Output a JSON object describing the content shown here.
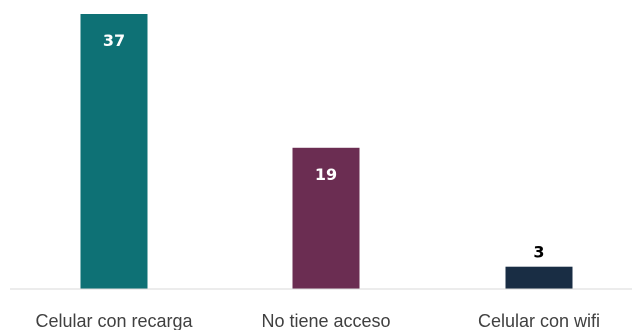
{
  "chart_data": {
    "type": "bar",
    "categories": [
      "Celular con recarga",
      "No tiene acceso",
      "Celular con wifi"
    ],
    "values": [
      37,
      19,
      3
    ],
    "colors": [
      "#0e7175",
      "#6b2d52",
      "#192d44"
    ],
    "value_label_colors": [
      "#ffffff",
      "#ffffff",
      "#000000"
    ],
    "axis_color": "#d9d9d9",
    "title": "",
    "xlabel": "",
    "ylabel": "",
    "ylim": [
      0,
      37
    ],
    "grid": false,
    "legend": "none"
  }
}
